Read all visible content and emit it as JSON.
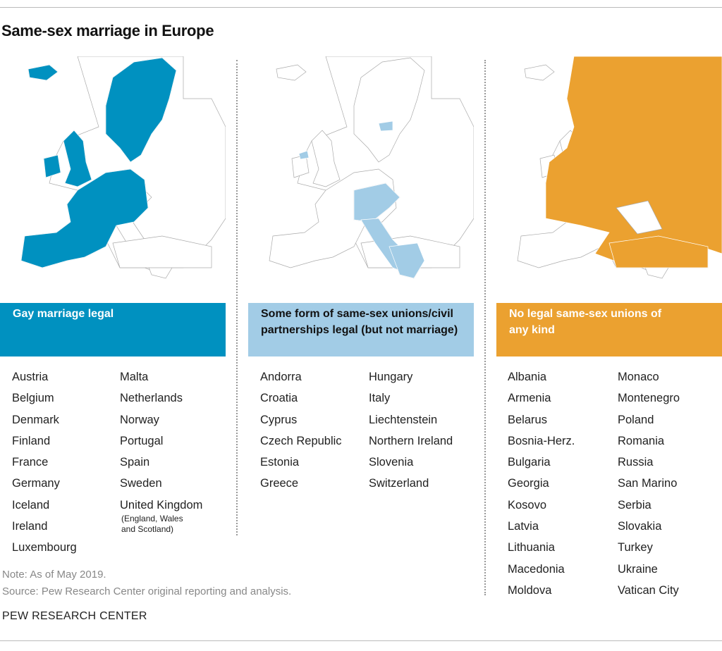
{
  "title": "Same-sex marriage in Europe",
  "colors": {
    "marriage": "#0091c0",
    "unions": "#a2cce6",
    "none": "#eba130",
    "outline": "#aaaaaa"
  },
  "categories": [
    {
      "label": "Gay marriage legal",
      "countries_col1": [
        "Austria",
        "Belgium",
        "Denmark",
        "Finland",
        "France",
        "Germany",
        "Iceland",
        "Ireland",
        "Luxembourg"
      ],
      "countries_col2": [
        "Malta",
        "Netherlands",
        "Norway",
        "Portugal",
        "Spain",
        "Sweden",
        "United Kingdom"
      ],
      "uk_note": "(England, Wales and Scotland)"
    },
    {
      "label": "Some form of same-sex unions/civil partnerships legal (but not marriage)",
      "countries_col1": [
        "Andorra",
        "Croatia",
        "Cyprus",
        "Czech Republic",
        "Estonia",
        "Greece"
      ],
      "countries_col2": [
        "Hungary",
        "Italy",
        "Liechtenstein",
        "Northern Ireland",
        "Slovenia",
        "Switzerland"
      ]
    },
    {
      "label": "No legal same-sex unions of any kind",
      "countries_col1": [
        "Albania",
        "Armenia",
        "Belarus",
        "Bosnia-Herz.",
        "Bulgaria",
        "Georgia",
        "Kosovo",
        "Latvia",
        "Lithuania",
        "Macedonia",
        "Moldova"
      ],
      "countries_col2": [
        "Monaco",
        "Montenegro",
        "Poland",
        "Romania",
        "Russia",
        "San Marino",
        "Serbia",
        "Slovakia",
        "Turkey",
        "Ukraine",
        "Vatican City"
      ]
    }
  ],
  "note": "Note: As of May 2019.",
  "source": "Source: Pew Research Center original reporting and analysis.",
  "brand": "PEW RESEARCH CENTER"
}
